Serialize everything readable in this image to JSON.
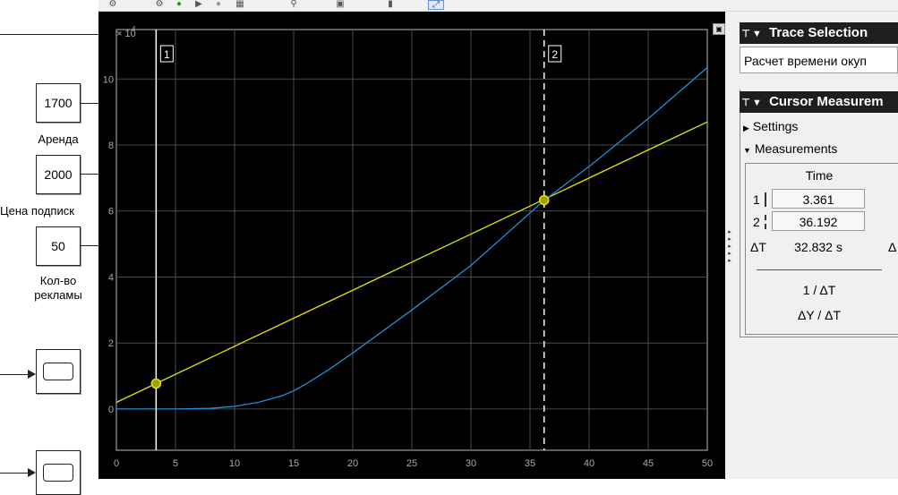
{
  "model": {
    "blocks": [
      {
        "value": "1700",
        "label": "Аренда"
      },
      {
        "value": "2000",
        "label": "Цена подписк"
      },
      {
        "value": "50",
        "label_lines": [
          "Кол-во",
          "рекламы"
        ]
      }
    ]
  },
  "scope": {
    "toolbar_icons": [
      "gear-icon",
      "run-icon",
      "step-icon",
      "stop-icon",
      "layout-icon",
      "zoom-icon",
      "autoscale-icon",
      "cursor-icon",
      "measure-icon"
    ],
    "exponent_label": "× 10",
    "exponent_power": "4",
    "cursor1_label": "1",
    "cursor2_label": "2",
    "expand_icon": "▣",
    "side_arrows": "▸▸▸▸▸"
  },
  "trace_selection": {
    "title": "Trace Selection",
    "selected": "Расчет времени  окуп"
  },
  "cursor_measurements": {
    "title": "Cursor Measurem",
    "settings_label": "Settings",
    "measurements_label": "Measurements",
    "time_header": "Time",
    "row1_index": "1",
    "row1_value": "3.361",
    "row2_index": "2",
    "row2_value": "36.192",
    "delta_t_label": "ΔT",
    "delta_t_value": "32.832 s",
    "delta_y_partial": "Δ",
    "inv_delta_label": "1 / ΔT",
    "slope_label": "ΔY / ΔT"
  },
  "chart_data": {
    "type": "line",
    "xlim": [
      0,
      50
    ],
    "ylim": [
      -12500,
      115000
    ],
    "x_ticks": [
      0,
      5,
      10,
      15,
      20,
      25,
      30,
      35,
      40,
      45,
      50
    ],
    "y_ticks": [
      0,
      20000,
      40000,
      60000,
      80000,
      100000
    ],
    "y_tick_labels": [
      "0",
      "2",
      "4",
      "6",
      "8",
      "10"
    ],
    "grid": true,
    "series": [
      {
        "color": "#e6e600",
        "points": [
          [
            0,
            2000
          ],
          [
            50,
            87000
          ]
        ]
      },
      {
        "color": "#1f8fd6",
        "points": [
          [
            0,
            0
          ],
          [
            5,
            0
          ],
          [
            8,
            200
          ],
          [
            10,
            800
          ],
          [
            12,
            2000
          ],
          [
            14,
            4000
          ],
          [
            15,
            5500
          ],
          [
            16,
            7500
          ],
          [
            18,
            12000
          ],
          [
            20,
            17000
          ],
          [
            25,
            30000
          ],
          [
            30,
            43500
          ],
          [
            36.192,
            63200
          ],
          [
            40,
            73500
          ],
          [
            45,
            88000
          ],
          [
            50,
            103500
          ]
        ]
      }
    ],
    "cursors": [
      {
        "x": 3.361,
        "y": 7700,
        "style": "solid"
      },
      {
        "x": 36.192,
        "y": 63300,
        "style": "dashed"
      }
    ]
  }
}
